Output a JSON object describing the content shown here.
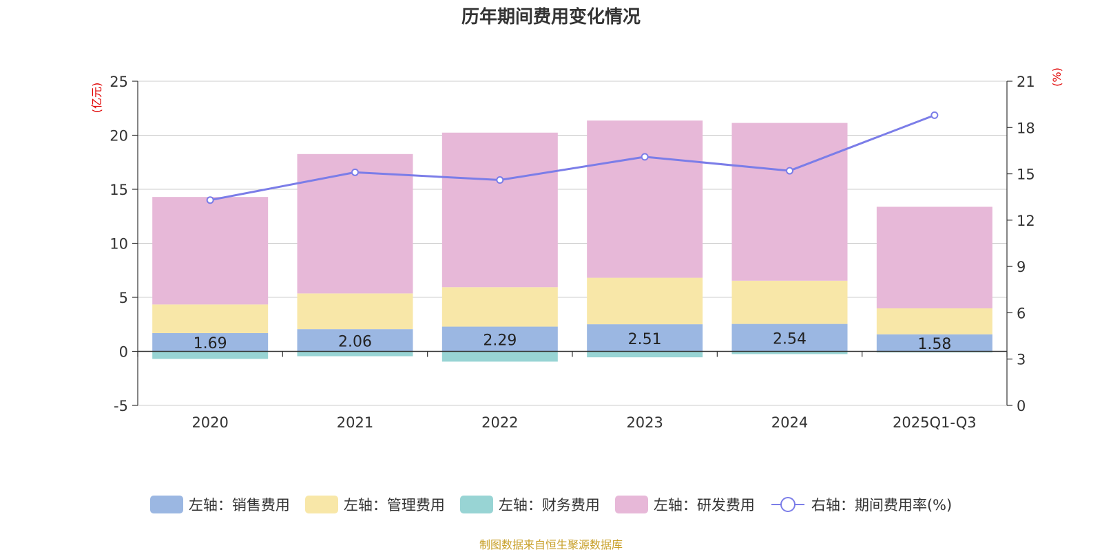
{
  "chart_data": {
    "type": "bar",
    "stacked": true,
    "title": "历年期间费用变化情况",
    "categories": [
      "2020",
      "2021",
      "2022",
      "2023",
      "2024",
      "2025Q1-Q3"
    ],
    "left_axis": {
      "unit_label": "(亿元)",
      "ylim": [
        -5,
        25
      ],
      "ticks": [
        "-5",
        "0",
        "5",
        "10",
        "15",
        "20",
        "25"
      ]
    },
    "right_axis": {
      "unit_label": "(%)",
      "ylim": [
        0,
        21
      ],
      "ticks": [
        "0",
        "3",
        "6",
        "9",
        "12",
        "15",
        "18",
        "21"
      ]
    },
    "series": [
      {
        "name": "左轴：销售费用",
        "axis": "left",
        "color": "#9bb7e2",
        "values": [
          1.69,
          2.06,
          2.29,
          2.51,
          2.54,
          1.58
        ],
        "labels": [
          "1.69",
          "2.06",
          "2.29",
          "2.51",
          "2.54",
          "1.58"
        ]
      },
      {
        "name": "左轴：管理费用",
        "axis": "left",
        "color": "#f8e7a8",
        "values": [
          2.65,
          3.3,
          3.65,
          4.3,
          4.0,
          2.4
        ]
      },
      {
        "name": "左轴：财务费用",
        "axis": "left",
        "color": "#98d4d4",
        "values": [
          -0.7,
          -0.45,
          -0.95,
          -0.55,
          -0.25,
          -0.1
        ]
      },
      {
        "name": "左轴：研发费用",
        "axis": "left",
        "color": "#e7b8d8",
        "values": [
          9.95,
          12.9,
          14.3,
          14.55,
          14.6,
          9.4
        ]
      },
      {
        "name": "右轴：期间费用率(%)",
        "axis": "right",
        "type": "line",
        "color": "#7b7de8",
        "values": [
          13.3,
          15.1,
          14.6,
          16.1,
          15.2,
          18.8
        ]
      }
    ],
    "source": "制图数据来自恒生聚源数据库"
  }
}
